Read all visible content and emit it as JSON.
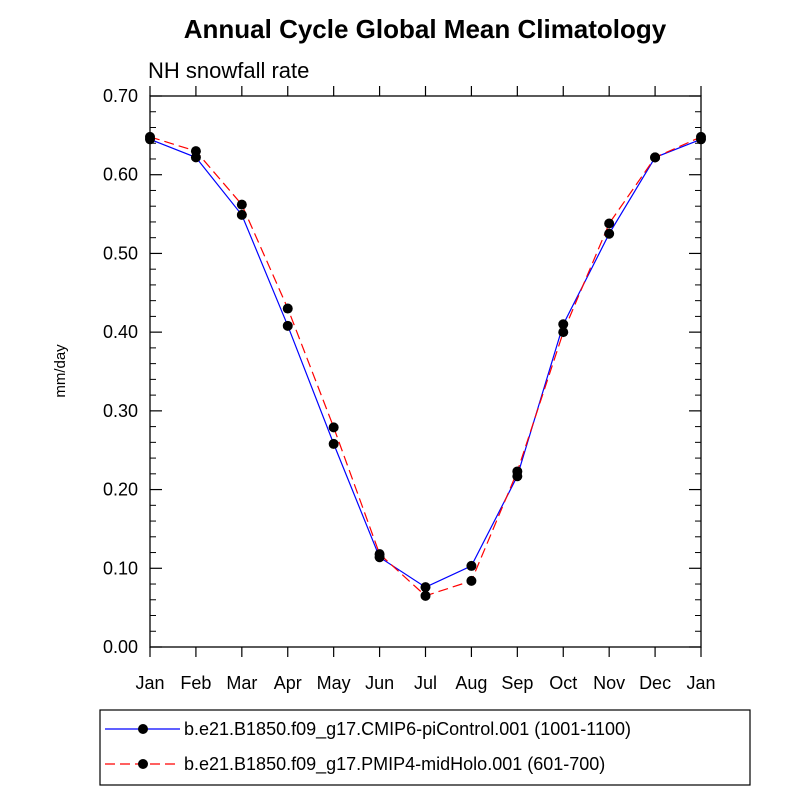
{
  "chart_data": {
    "type": "line",
    "title": "Annual Cycle Global Mean Climatology",
    "subtitle": "NH snowfall rate",
    "ylabel": "mm/day",
    "xlabel": "",
    "categories": [
      "Jan",
      "Feb",
      "Mar",
      "Apr",
      "May",
      "Jun",
      "Jul",
      "Aug",
      "Sep",
      "Oct",
      "Nov",
      "Dec",
      "Jan"
    ],
    "ylim": [
      0,
      0.7
    ],
    "yticks": [
      "0.00",
      "0.10",
      "0.20",
      "0.30",
      "0.40",
      "0.50",
      "0.60",
      "0.70"
    ],
    "legend_position": "bottom",
    "series": [
      {
        "name": "b.e21.B1850.f09_g17.CMIP6-piControl.001 (1001-1100)",
        "color": "#0000ff",
        "line_style": "solid",
        "values": [
          0.645,
          0.622,
          0.549,
          0.408,
          0.258,
          0.114,
          0.076,
          0.103,
          0.217,
          0.41,
          0.525,
          0.622,
          0.645
        ]
      },
      {
        "name": "b.e21.B1850.f09_g17.PMIP4-midHolo.001 (601-700)",
        "color": "#ff0000",
        "line_style": "dashed",
        "values": [
          0.648,
          0.63,
          0.562,
          0.43,
          0.279,
          0.118,
          0.065,
          0.084,
          0.223,
          0.4,
          0.538,
          0.622,
          0.648
        ]
      }
    ]
  }
}
